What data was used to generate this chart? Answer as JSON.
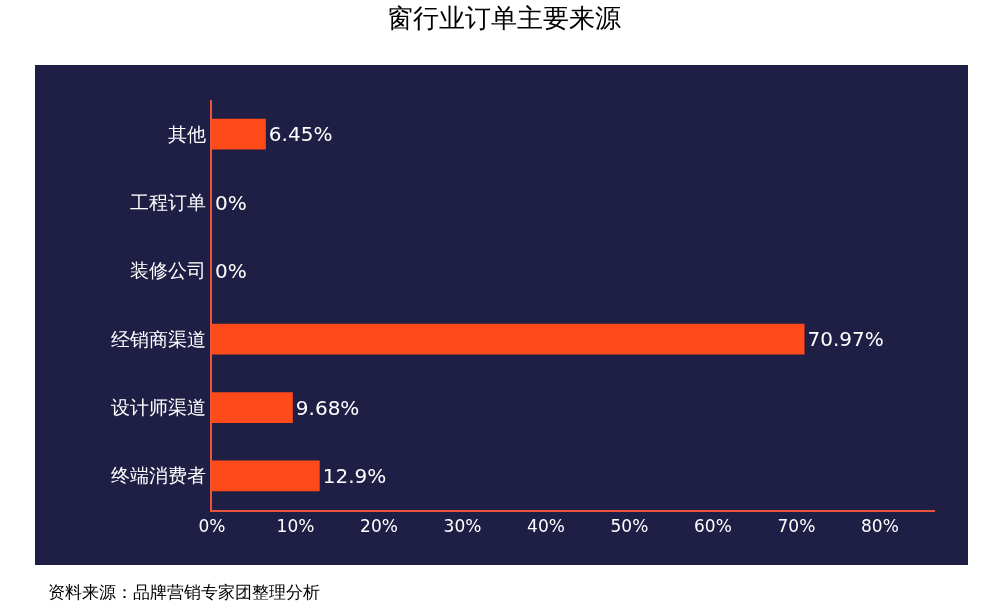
{
  "chart_data": {
    "type": "bar",
    "orientation": "horizontal",
    "title": "窗行业订单主要来源",
    "categories": [
      "其他",
      "工程订单",
      "装修公司",
      "经销商渠道",
      "设计师渠道",
      "终端消费者"
    ],
    "values": [
      6.45,
      0,
      0,
      70.97,
      9.68,
      12.9
    ],
    "value_labels": [
      "6.45%",
      "0%",
      "0%",
      "70.97%",
      "9.68%",
      "12.9%"
    ],
    "color": "#ff4a1a",
    "xlim": [
      0,
      86.6
    ],
    "xticks": [
      {
        "value": 0,
        "label": "0%"
      },
      {
        "value": 10,
        "label": "10%"
      },
      {
        "value": 20,
        "label": "20%"
      },
      {
        "value": 30,
        "label": "30%"
      },
      {
        "value": 40,
        "label": "40%"
      },
      {
        "value": 50,
        "label": "50%"
      },
      {
        "value": 60,
        "label": "60%"
      },
      {
        "value": 70,
        "label": "70%"
      },
      {
        "value": 80,
        "label": "80%"
      }
    ],
    "grid": false,
    "legend": false,
    "annotations": [
      "资料来源：品牌营销专家团整理分析"
    ]
  }
}
